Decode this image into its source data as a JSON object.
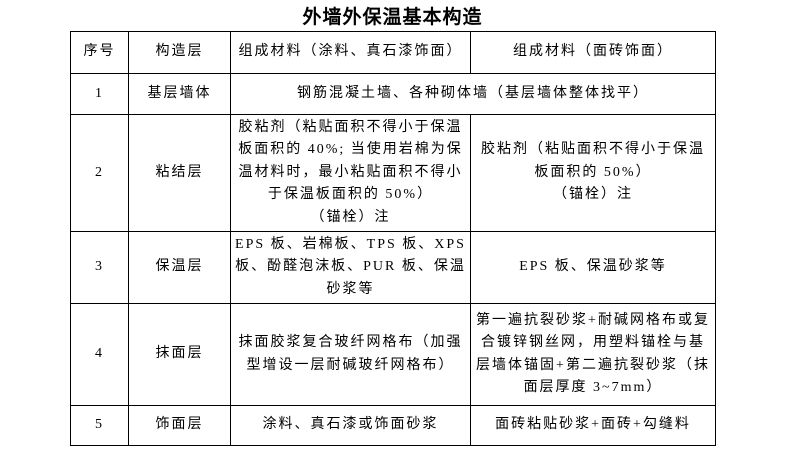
{
  "title": "外墙外保温基本构造",
  "table": {
    "headers": {
      "no": "序号",
      "layer": "构造层",
      "coating_finish": "组成材料（涂料、真石漆饰面）",
      "tile_finish": "组成材料（面砖饰面）"
    },
    "rows": [
      {
        "no": "1",
        "layer": "基层墙体",
        "coating_finish": "钢筋混凝土墙、各种砌体墙（基层墙体整体找平）",
        "tile_finish": "",
        "merged": true
      },
      {
        "no": "2",
        "layer": "粘结层",
        "coating_finish": "胶粘剂（粘贴面积不得小于保温板面积的 40%; 当使用岩棉为保温材料时，最小粘贴面积不得小于保温板面积的 50%）\n（锚栓）注",
        "tile_finish": "胶粘剂（粘贴面积不得小于保温板面积的 50%）\n（锚栓）注"
      },
      {
        "no": "3",
        "layer": "保温层",
        "coating_finish": "EPS 板、岩棉板、TPS 板、XPS 板、酚醛泡沫板、PUR 板、保温砂浆等",
        "tile_finish": "EPS 板、保温砂浆等"
      },
      {
        "no": "4",
        "layer": "抹面层",
        "coating_finish": "抹面胶浆复合玻纤网格布（加强型增设一层耐碱玻纤网格布）",
        "tile_finish": "第一遍抗裂砂浆+耐碱网格布或复合镀锌钢丝网，用塑料锚栓与基层墙体锚固+第二遍抗裂砂浆（抹面层厚度 3~7mm）"
      },
      {
        "no": "5",
        "layer": "饰面层",
        "coating_finish": "涂料、真石漆或饰面砂浆",
        "tile_finish": "面砖粘贴砂浆+面砖+勾缝料"
      }
    ]
  },
  "colors": {
    "text": "#000000",
    "border": "#000000",
    "background": "#ffffff"
  }
}
